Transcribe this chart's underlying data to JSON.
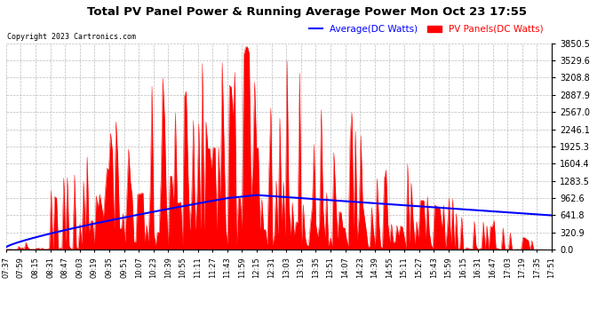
{
  "title": "Total PV Panel Power & Running Average Power Mon Oct 23 17:55",
  "copyright": "Copyright 2023 Cartronics.com",
  "legend_avg": "Average(DC Watts)",
  "legend_pv": "PV Panels(DC Watts)",
  "legend_avg_color": "blue",
  "legend_pv_color": "red",
  "background_color": "#ffffff",
  "grid_color": "#aaaaaa",
  "ymax": 3850.5,
  "ymin": 0.0,
  "yticks": [
    0.0,
    320.9,
    641.8,
    962.6,
    1283.5,
    1604.4,
    1925.3,
    2246.1,
    2567.0,
    2887.9,
    3208.8,
    3529.6,
    3850.5
  ],
  "x_labels": [
    "07:37",
    "07:59",
    "08:15",
    "08:31",
    "08:47",
    "09:03",
    "09:19",
    "09:35",
    "09:51",
    "10:07",
    "10:23",
    "10:39",
    "10:55",
    "11:11",
    "11:27",
    "11:43",
    "11:59",
    "12:15",
    "12:31",
    "13:03",
    "13:19",
    "13:35",
    "13:51",
    "14:07",
    "14:23",
    "14:39",
    "14:55",
    "15:11",
    "15:27",
    "15:43",
    "15:59",
    "16:15",
    "16:31",
    "16:47",
    "17:03",
    "17:19",
    "17:35",
    "17:51"
  ]
}
